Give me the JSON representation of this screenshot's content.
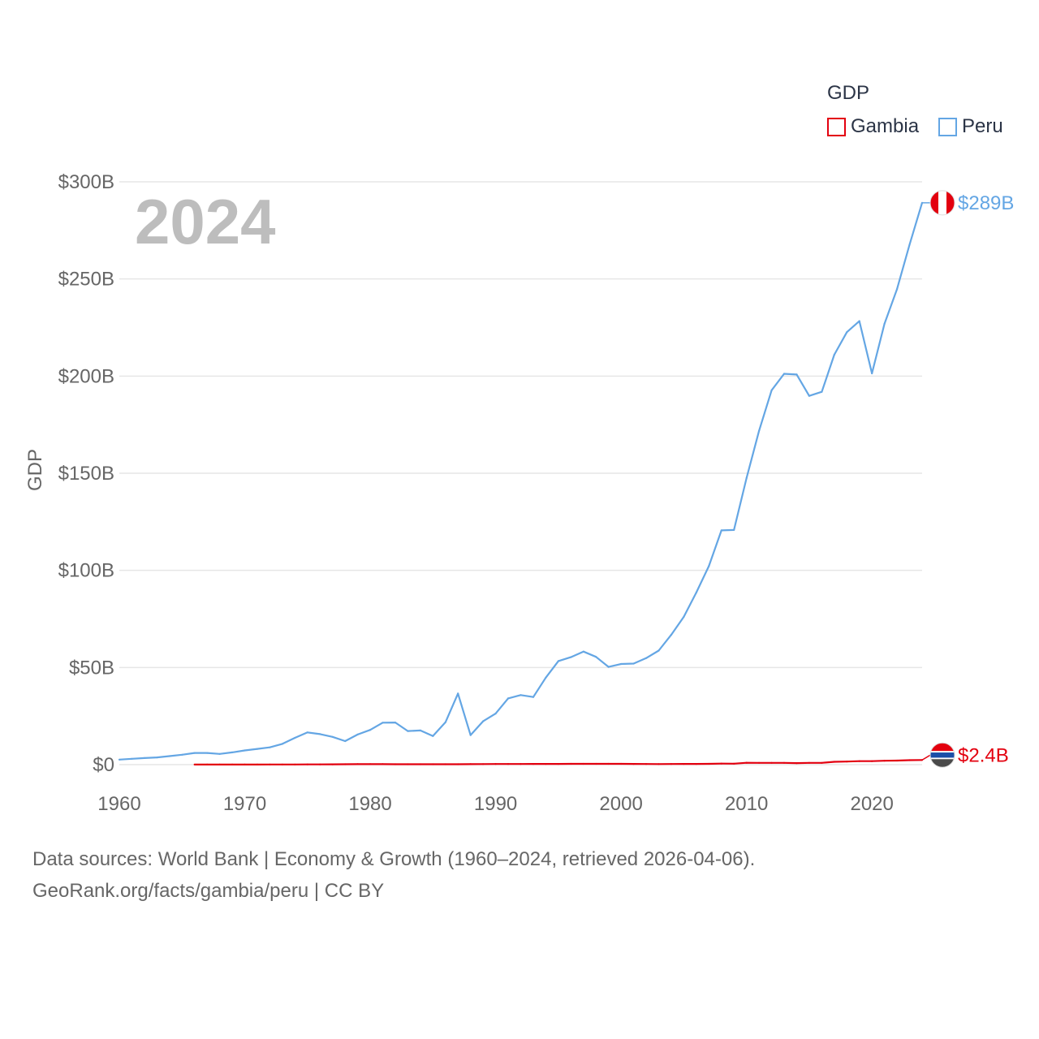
{
  "chart_data": {
    "type": "line",
    "year_overlay": "2024",
    "ylabel": "GDP",
    "xlim": [
      1960,
      2024
    ],
    "ylim": [
      0,
      300
    ],
    "y_unit": "billion USD",
    "grid": true,
    "x_ticks": [
      1960,
      1970,
      1980,
      1990,
      2000,
      2010,
      2020
    ],
    "x_tick_labels": [
      "1960",
      "1970",
      "1980",
      "1990",
      "2000",
      "2010",
      "2020"
    ],
    "y_ticks": [
      0,
      50,
      100,
      150,
      200,
      250,
      300
    ],
    "y_tick_labels": [
      "$0",
      "$50B",
      "$100B",
      "$150B",
      "$200B",
      "$250B",
      "$300B"
    ],
    "legend_title": "GDP",
    "legend_position": "top-right",
    "series": [
      {
        "name": "Gambia",
        "color": "#e3000f",
        "end_label": "$2.4B",
        "flag_icon": "gambia-flag-icon",
        "points": [
          [
            1966,
            0.05
          ],
          [
            1967,
            0.05
          ],
          [
            1968,
            0.05
          ],
          [
            1969,
            0.05
          ],
          [
            1970,
            0.06
          ],
          [
            1971,
            0.06
          ],
          [
            1972,
            0.07
          ],
          [
            1973,
            0.08
          ],
          [
            1974,
            0.1
          ],
          [
            1975,
            0.11
          ],
          [
            1976,
            0.14
          ],
          [
            1977,
            0.17
          ],
          [
            1978,
            0.2
          ],
          [
            1979,
            0.24
          ],
          [
            1980,
            0.24
          ],
          [
            1981,
            0.23
          ],
          [
            1982,
            0.22
          ],
          [
            1983,
            0.21
          ],
          [
            1984,
            0.2
          ],
          [
            1985,
            0.22
          ],
          [
            1986,
            0.2
          ],
          [
            1987,
            0.22
          ],
          [
            1988,
            0.26
          ],
          [
            1989,
            0.28
          ],
          [
            1990,
            0.32
          ],
          [
            1991,
            0.34
          ],
          [
            1992,
            0.35
          ],
          [
            1993,
            0.37
          ],
          [
            1994,
            0.38
          ],
          [
            1995,
            0.38
          ],
          [
            1996,
            0.4
          ],
          [
            1997,
            0.41
          ],
          [
            1998,
            0.42
          ],
          [
            1999,
            0.43
          ],
          [
            2000,
            0.42
          ],
          [
            2001,
            0.38
          ],
          [
            2002,
            0.33
          ],
          [
            2003,
            0.29
          ],
          [
            2004,
            0.34
          ],
          [
            2005,
            0.36
          ],
          [
            2006,
            0.39
          ],
          [
            2007,
            0.43
          ],
          [
            2008,
            0.55
          ],
          [
            2009,
            0.52
          ],
          [
            2010,
            0.95
          ],
          [
            2011,
            0.9
          ],
          [
            2012,
            0.91
          ],
          [
            2013,
            0.92
          ],
          [
            2014,
            0.81
          ],
          [
            2015,
            0.92
          ],
          [
            2016,
            0.94
          ],
          [
            2017,
            1.46
          ],
          [
            2018,
            1.6
          ],
          [
            2019,
            1.8
          ],
          [
            2020,
            1.8
          ],
          [
            2021,
            2.0
          ],
          [
            2022,
            2.1
          ],
          [
            2023,
            2.3
          ],
          [
            2024,
            2.4
          ]
        ]
      },
      {
        "name": "Peru",
        "color": "#64a6e4",
        "end_label": "$289B",
        "flag_icon": "peru-flag-icon",
        "points": [
          [
            1960,
            2.6
          ],
          [
            1961,
            3.0
          ],
          [
            1962,
            3.4
          ],
          [
            1963,
            3.7
          ],
          [
            1964,
            4.4
          ],
          [
            1965,
            5.1
          ],
          [
            1966,
            6.0
          ],
          [
            1967,
            6.0
          ],
          [
            1968,
            5.5
          ],
          [
            1969,
            6.3
          ],
          [
            1970,
            7.3
          ],
          [
            1971,
            8.1
          ],
          [
            1972,
            8.9
          ],
          [
            1973,
            10.7
          ],
          [
            1974,
            13.8
          ],
          [
            1975,
            16.6
          ],
          [
            1976,
            15.7
          ],
          [
            1977,
            14.3
          ],
          [
            1978,
            12.1
          ],
          [
            1979,
            15.5
          ],
          [
            1980,
            17.9
          ],
          [
            1981,
            21.6
          ],
          [
            1982,
            21.7
          ],
          [
            1983,
            17.3
          ],
          [
            1984,
            17.6
          ],
          [
            1985,
            14.7
          ],
          [
            1986,
            21.8
          ],
          [
            1987,
            36.6
          ],
          [
            1988,
            15.2
          ],
          [
            1989,
            22.3
          ],
          [
            1990,
            26.3
          ],
          [
            1991,
            34.1
          ],
          [
            1992,
            35.8
          ],
          [
            1993,
            34.8
          ],
          [
            1994,
            44.8
          ],
          [
            1995,
            53.3
          ],
          [
            1996,
            55.3
          ],
          [
            1997,
            58.2
          ],
          [
            1998,
            55.5
          ],
          [
            1999,
            50.3
          ],
          [
            2000,
            51.8
          ],
          [
            2001,
            52.0
          ],
          [
            2002,
            54.8
          ],
          [
            2003,
            58.7
          ],
          [
            2004,
            66.8
          ],
          [
            2005,
            76.1
          ],
          [
            2006,
            88.6
          ],
          [
            2007,
            102.2
          ],
          [
            2008,
            120.6
          ],
          [
            2009,
            120.8
          ],
          [
            2010,
            147.5
          ],
          [
            2011,
            171.8
          ],
          [
            2012,
            192.7
          ],
          [
            2013,
            201.2
          ],
          [
            2014,
            200.8
          ],
          [
            2015,
            189.8
          ],
          [
            2016,
            191.9
          ],
          [
            2017,
            211.0
          ],
          [
            2018,
            222.6
          ],
          [
            2019,
            228.3
          ],
          [
            2020,
            201.4
          ],
          [
            2021,
            226.9
          ],
          [
            2022,
            244.8
          ],
          [
            2023,
            267.6
          ],
          [
            2024,
            289.2
          ]
        ]
      }
    ]
  },
  "footer": {
    "line1": "Data sources: World Bank | Economy & Growth (1960–2024, retrieved 2026-04-06).",
    "line2": "GeoRank.org/facts/gambia/peru | CC BY"
  }
}
